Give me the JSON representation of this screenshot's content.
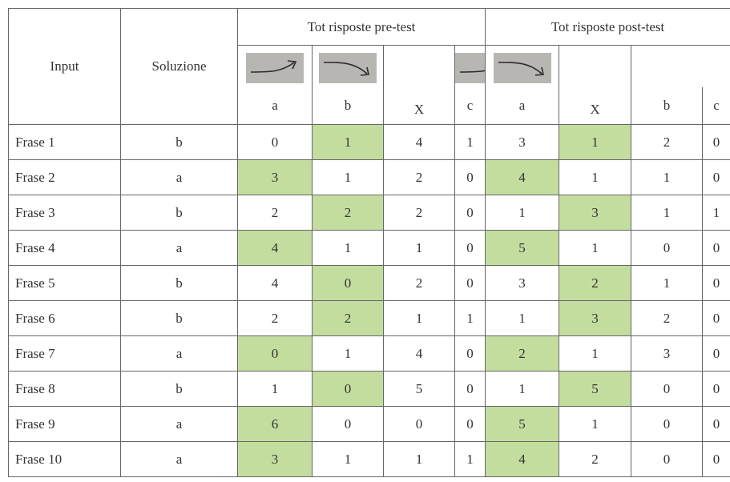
{
  "header": {
    "input": "Input",
    "solution": "Soluzione",
    "pre_group": "Tot risposte pre-test",
    "post_group": "Tot risposte post-test",
    "pre_columns": [
      "a",
      "b",
      "c",
      "X"
    ],
    "post_columns": [
      "a",
      "b",
      "c",
      "X"
    ]
  },
  "rows": [
    {
      "label": "Frase 1",
      "solution": "b",
      "pre": [
        0,
        1,
        4,
        1
      ],
      "post": [
        3,
        1,
        2,
        0
      ]
    },
    {
      "label": "Frase 2",
      "solution": "a",
      "pre": [
        3,
        1,
        2,
        0
      ],
      "post": [
        4,
        1,
        1,
        0
      ]
    },
    {
      "label": "Frase 3",
      "solution": "b",
      "pre": [
        2,
        2,
        2,
        0
      ],
      "post": [
        1,
        3,
        1,
        1
      ]
    },
    {
      "label": "Frase 4",
      "solution": "a",
      "pre": [
        4,
        1,
        1,
        0
      ],
      "post": [
        5,
        1,
        0,
        0
      ]
    },
    {
      "label": "Frase 5",
      "solution": "b",
      "pre": [
        4,
        0,
        2,
        0
      ],
      "post": [
        3,
        2,
        1,
        0
      ]
    },
    {
      "label": "Frase 6",
      "solution": "b",
      "pre": [
        2,
        2,
        1,
        1
      ],
      "post": [
        1,
        3,
        2,
        0
      ]
    },
    {
      "label": "Frase 7",
      "solution": "a",
      "pre": [
        0,
        1,
        4,
        0
      ],
      "post": [
        2,
        1,
        3,
        0
      ]
    },
    {
      "label": "Frase 8",
      "solution": "b",
      "pre": [
        1,
        0,
        5,
        0
      ],
      "post": [
        1,
        5,
        0,
        0
      ]
    },
    {
      "label": "Frase 9",
      "solution": "a",
      "pre": [
        6,
        0,
        0,
        0
      ],
      "post": [
        5,
        1,
        0,
        0
      ]
    },
    {
      "label": "Frase 10",
      "solution": "a",
      "pre": [
        3,
        1,
        1,
        1
      ],
      "post": [
        4,
        2,
        0,
        0
      ]
    }
  ]
}
